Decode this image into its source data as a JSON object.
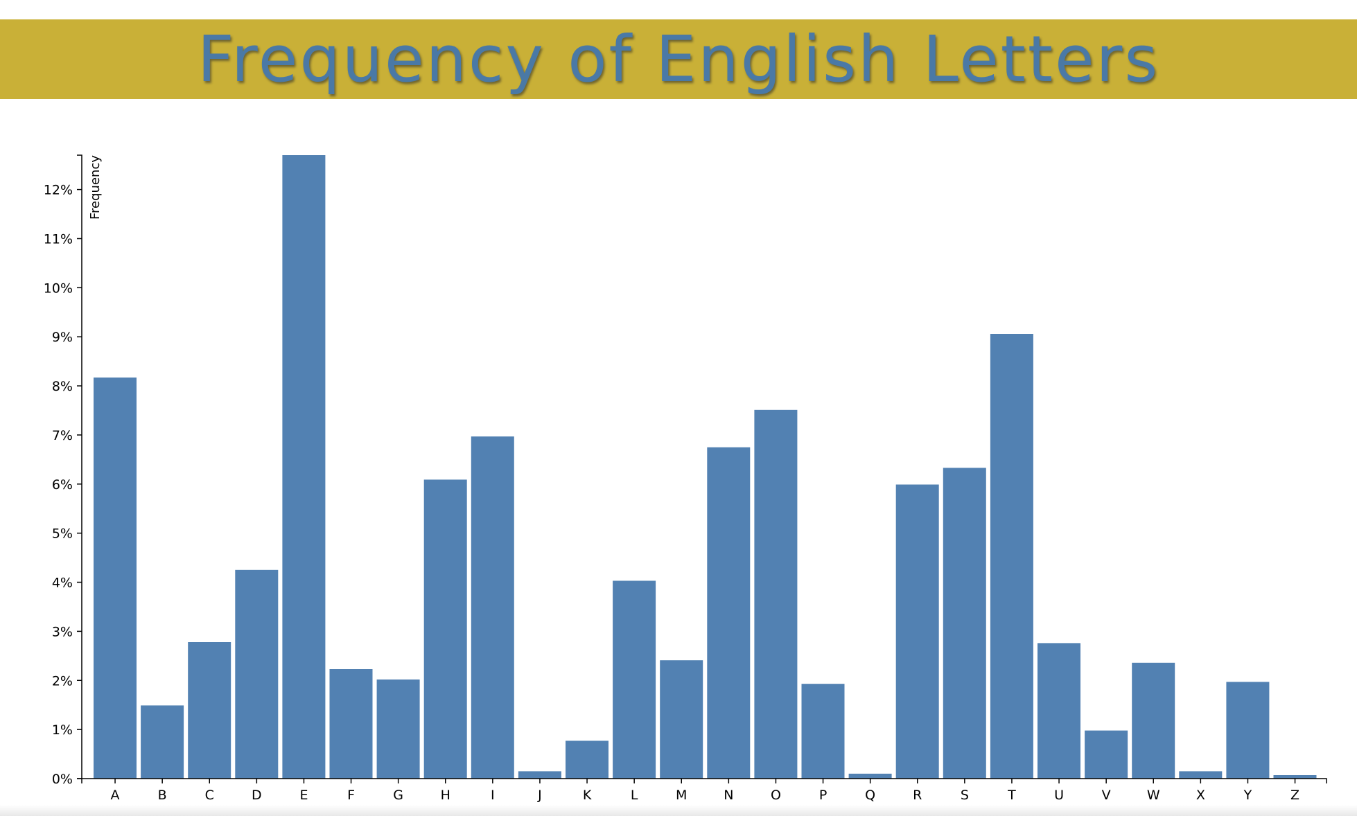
{
  "header": {
    "title": "Frequency of English Letters"
  },
  "colors": {
    "header_background": "#c9b037",
    "title_text": "#4a79a6",
    "bar_fill": "#5281b2",
    "axis": "#000000"
  },
  "chart_data": {
    "type": "bar",
    "title": "Frequency of English Letters",
    "xlabel": "",
    "ylabel": "Frequency",
    "ylim": [
      0,
      12.7
    ],
    "y_tick_format": "percent",
    "y_ticks": [
      0,
      1,
      2,
      3,
      4,
      5,
      6,
      7,
      8,
      9,
      10,
      11,
      12
    ],
    "y_tick_labels": [
      "0%",
      "1%",
      "2%",
      "3%",
      "4%",
      "5%",
      "6%",
      "7%",
      "8%",
      "9%",
      "10%",
      "11%",
      "12%"
    ],
    "grid": false,
    "legend": "none",
    "categories": [
      "A",
      "B",
      "C",
      "D",
      "E",
      "F",
      "G",
      "H",
      "I",
      "J",
      "K",
      "L",
      "M",
      "N",
      "O",
      "P",
      "Q",
      "R",
      "S",
      "T",
      "U",
      "V",
      "W",
      "X",
      "Y",
      "Z"
    ],
    "values": [
      8.17,
      1.49,
      2.78,
      4.25,
      12.7,
      2.23,
      2.02,
      6.09,
      6.97,
      0.15,
      0.77,
      4.03,
      2.41,
      6.75,
      7.51,
      1.93,
      0.1,
      5.99,
      6.33,
      9.06,
      2.76,
      0.98,
      2.36,
      0.15,
      1.97,
      0.07
    ]
  }
}
